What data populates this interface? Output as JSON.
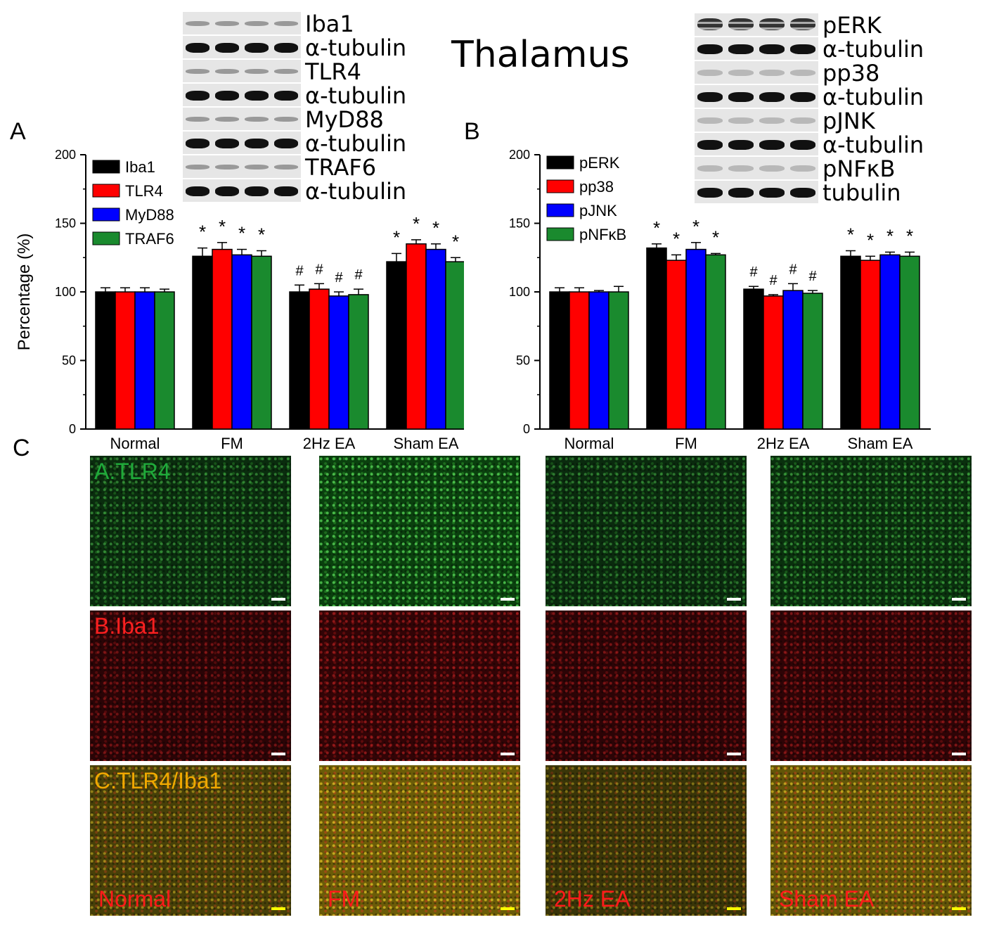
{
  "title": "Thalamus",
  "panels": {
    "a": "A",
    "b": "B",
    "c": "C"
  },
  "blots_left": [
    {
      "label": "Iba1",
      "kind": "target"
    },
    {
      "label": "α-tubulin",
      "kind": "loading"
    },
    {
      "label": "TLR4",
      "kind": "target"
    },
    {
      "label": "α-tubulin",
      "kind": "loading"
    },
    {
      "label": "MyD88",
      "kind": "target"
    },
    {
      "label": "α-tubulin",
      "kind": "loading"
    },
    {
      "label": "TRAF6",
      "kind": "target"
    },
    {
      "label": "α-tubulin",
      "kind": "loading"
    }
  ],
  "blots_right": [
    {
      "label": "pERK",
      "kind": "double"
    },
    {
      "label": "α-tubulin",
      "kind": "loading"
    },
    {
      "label": "pp38",
      "kind": "faint"
    },
    {
      "label": "α-tubulin",
      "kind": "loading"
    },
    {
      "label": "pJNK",
      "kind": "faint"
    },
    {
      "label": "α-tubulin",
      "kind": "loading"
    },
    {
      "label": "pNFκB",
      "kind": "faint"
    },
    {
      "label": "tubulin",
      "kind": "loading"
    }
  ],
  "chart_data": [
    {
      "type": "bar",
      "panel": "A",
      "categories": [
        "Normal",
        "FM",
        "2Hz EA",
        "Sham EA"
      ],
      "ylabel": "Percentage (%)",
      "ylim": [
        0,
        200
      ],
      "yticks": [
        0,
        50,
        100,
        150,
        200
      ],
      "legend_position": "top-left",
      "series": [
        {
          "name": "Iba1",
          "color": "#000000",
          "values": [
            100,
            126,
            100,
            122
          ],
          "errors": [
            3,
            6,
            5,
            6
          ],
          "marks": [
            "",
            "*",
            "#",
            "*"
          ]
        },
        {
          "name": "TLR4",
          "color": "#ff0000",
          "values": [
            100,
            131,
            102,
            135
          ],
          "errors": [
            3,
            5,
            4,
            3
          ],
          "marks": [
            "",
            "*",
            "#",
            "*"
          ]
        },
        {
          "name": "MyD88",
          "color": "#0000ff",
          "values": [
            100,
            127,
            97,
            131
          ],
          "errors": [
            3,
            4,
            3,
            4
          ],
          "marks": [
            "",
            "*",
            "#",
            "*"
          ]
        },
        {
          "name": "TRAF6",
          "color": "#1a8a2e",
          "values": [
            100,
            126,
            98,
            122
          ],
          "errors": [
            2,
            4,
            4,
            3
          ],
          "marks": [
            "",
            "*",
            "#",
            "*"
          ]
        }
      ]
    },
    {
      "type": "bar",
      "panel": "B",
      "categories": [
        "Normal",
        "FM",
        "2Hz EA",
        "Sham EA"
      ],
      "ylabel": "",
      "ylim": [
        0,
        200
      ],
      "yticks": [
        0,
        50,
        100,
        150,
        200
      ],
      "legend_position": "top-left",
      "series": [
        {
          "name": "pERK",
          "color": "#000000",
          "values": [
            100,
            132,
            102,
            126
          ],
          "errors": [
            3,
            3,
            2,
            4
          ],
          "marks": [
            "",
            "*",
            "#",
            "*"
          ]
        },
        {
          "name": "pp38",
          "color": "#ff0000",
          "values": [
            100,
            123,
            97,
            123
          ],
          "errors": [
            3,
            4,
            1,
            3
          ],
          "marks": [
            "",
            "*",
            "#",
            "*"
          ]
        },
        {
          "name": "pJNK",
          "color": "#0000ff",
          "values": [
            100,
            131,
            101,
            127
          ],
          "errors": [
            1,
            5,
            5,
            2
          ],
          "marks": [
            "",
            "*",
            "#",
            "*"
          ]
        },
        {
          "name": "pNFκB",
          "color": "#1a8a2e",
          "values": [
            100,
            127,
            99,
            126
          ],
          "errors": [
            4,
            1,
            2,
            3
          ],
          "marks": [
            "",
            "*",
            "#",
            "*"
          ]
        }
      ]
    }
  ],
  "micrographs": {
    "rows": [
      {
        "label": "A.TLR4",
        "label_color": "#1faa3a",
        "channel": "green"
      },
      {
        "label": "B.Iba1",
        "label_color": "#ff2020",
        "channel": "red"
      },
      {
        "label": "C.TLR4/Iba1",
        "label_color": "#f0a800",
        "channel": "merge"
      }
    ],
    "groups": [
      "Normal",
      "FM",
      "2Hz EA",
      "Sham EA"
    ],
    "group_label_color": "#ff1a1a",
    "brightness": [
      [
        0.35,
        0.85,
        0.3,
        0.45
      ],
      [
        0.35,
        0.55,
        0.4,
        0.45
      ],
      [
        0.45,
        0.85,
        0.3,
        0.75
      ]
    ]
  }
}
